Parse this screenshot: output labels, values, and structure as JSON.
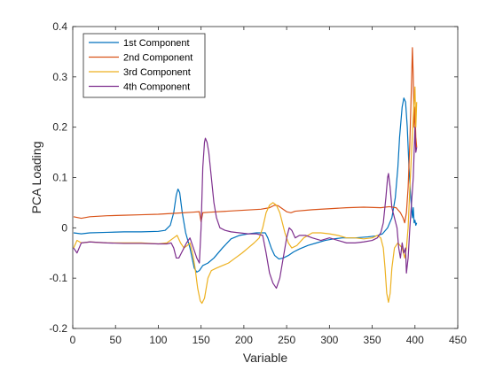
{
  "chart_data": {
    "type": "line",
    "title": "",
    "xlabel": "Variable",
    "ylabel": "PCA Loading",
    "xlim": [
      0,
      450
    ],
    "ylim": [
      -0.2,
      0.4
    ],
    "xticks": [
      0,
      50,
      100,
      150,
      200,
      250,
      300,
      350,
      400,
      450
    ],
    "yticks": [
      -0.2,
      -0.1,
      0,
      0.1,
      0.2,
      0.3,
      0.4
    ],
    "xtick_labels": [
      "0",
      "50",
      "100",
      "150",
      "200",
      "250",
      "300",
      "350",
      "400",
      "450"
    ],
    "ytick_labels": [
      "-0.2",
      "-0.1",
      "0",
      "0.1",
      "0.2",
      "0.3",
      "0.4"
    ],
    "grid": false,
    "legend_position": "top-left",
    "series": [
      {
        "name": "1st Component",
        "color": "#0072BD",
        "points": [
          [
            1,
            -0.01
          ],
          [
            10,
            -0.012
          ],
          [
            20,
            -0.01
          ],
          [
            40,
            -0.009
          ],
          [
            60,
            -0.008
          ],
          [
            80,
            -0.008
          ],
          [
            100,
            -0.007
          ],
          [
            108,
            -0.005
          ],
          [
            114,
            0.005
          ],
          [
            118,
            0.03
          ],
          [
            121,
            0.065
          ],
          [
            123,
            0.077
          ],
          [
            125,
            0.07
          ],
          [
            128,
            0.03
          ],
          [
            132,
            -0.01
          ],
          [
            137,
            -0.04
          ],
          [
            142,
            -0.08
          ],
          [
            145,
            -0.088
          ],
          [
            148,
            -0.085
          ],
          [
            152,
            -0.075
          ],
          [
            158,
            -0.07
          ],
          [
            165,
            -0.06
          ],
          [
            175,
            -0.04
          ],
          [
            185,
            -0.022
          ],
          [
            195,
            -0.015
          ],
          [
            205,
            -0.012
          ],
          [
            215,
            -0.01
          ],
          [
            225,
            -0.01
          ],
          [
            228,
            -0.02
          ],
          [
            232,
            -0.04
          ],
          [
            236,
            -0.055
          ],
          [
            241,
            -0.062
          ],
          [
            246,
            -0.06
          ],
          [
            252,
            -0.055
          ],
          [
            258,
            -0.048
          ],
          [
            265,
            -0.042
          ],
          [
            275,
            -0.035
          ],
          [
            285,
            -0.03
          ],
          [
            295,
            -0.025
          ],
          [
            305,
            -0.022
          ],
          [
            315,
            -0.02
          ],
          [
            330,
            -0.02
          ],
          [
            345,
            -0.018
          ],
          [
            355,
            -0.016
          ],
          [
            362,
            -0.012
          ],
          [
            368,
            0.0
          ],
          [
            373,
            0.02
          ],
          [
            377,
            0.06
          ],
          [
            380,
            0.12
          ],
          [
            382,
            0.18
          ],
          [
            385,
            0.24
          ],
          [
            387,
            0.258
          ],
          [
            389,
            0.25
          ],
          [
            391,
            0.2
          ],
          [
            393,
            0.12
          ],
          [
            395,
            0.06
          ],
          [
            397,
            0.02
          ],
          [
            398,
            0.04
          ],
          [
            399,
            0.01
          ],
          [
            400,
            0.015
          ],
          [
            401,
            0.005
          ],
          [
            402,
            0.01
          ]
        ]
      },
      {
        "name": "2nd Component",
        "color": "#D95319",
        "points": [
          [
            1,
            0.022
          ],
          [
            10,
            0.019
          ],
          [
            20,
            0.022
          ],
          [
            40,
            0.024
          ],
          [
            60,
            0.025
          ],
          [
            80,
            0.026
          ],
          [
            100,
            0.027
          ],
          [
            120,
            0.029
          ],
          [
            140,
            0.031
          ],
          [
            148,
            0.032
          ],
          [
            150,
            0.012
          ],
          [
            152,
            0.03
          ],
          [
            160,
            0.031
          ],
          [
            180,
            0.033
          ],
          [
            200,
            0.035
          ],
          [
            220,
            0.037
          ],
          [
            230,
            0.04
          ],
          [
            236,
            0.045
          ],
          [
            240,
            0.044
          ],
          [
            245,
            0.038
          ],
          [
            250,
            0.032
          ],
          [
            255,
            0.03
          ],
          [
            260,
            0.033
          ],
          [
            280,
            0.036
          ],
          [
            300,
            0.038
          ],
          [
            320,
            0.04
          ],
          [
            340,
            0.041
          ],
          [
            360,
            0.04
          ],
          [
            370,
            0.042
          ],
          [
            378,
            0.04
          ],
          [
            383,
            0.03
          ],
          [
            386,
            0.02
          ],
          [
            388,
            0.01
          ],
          [
            390,
            0.03
          ],
          [
            392,
            0.08
          ],
          [
            394,
            0.17
          ],
          [
            396,
            0.29
          ],
          [
            397,
            0.358
          ],
          [
            398,
            0.3
          ],
          [
            399,
            0.2
          ],
          [
            400,
            0.24
          ],
          [
            401,
            0.18
          ],
          [
            402,
            0.16
          ]
        ]
      },
      {
        "name": "3rd Component",
        "color": "#EDB120",
        "points": [
          [
            1,
            -0.04
          ],
          [
            5,
            -0.025
          ],
          [
            10,
            -0.03
          ],
          [
            20,
            -0.028
          ],
          [
            40,
            -0.03
          ],
          [
            60,
            -0.03
          ],
          [
            80,
            -0.03
          ],
          [
            100,
            -0.032
          ],
          [
            110,
            -0.03
          ],
          [
            118,
            -0.02
          ],
          [
            122,
            -0.015
          ],
          [
            126,
            -0.03
          ],
          [
            130,
            -0.04
          ],
          [
            134,
            -0.035
          ],
          [
            137,
            -0.03
          ],
          [
            140,
            -0.05
          ],
          [
            143,
            -0.08
          ],
          [
            146,
            -0.12
          ],
          [
            149,
            -0.145
          ],
          [
            151,
            -0.15
          ],
          [
            154,
            -0.14
          ],
          [
            158,
            -0.1
          ],
          [
            162,
            -0.085
          ],
          [
            168,
            -0.08
          ],
          [
            175,
            -0.075
          ],
          [
            182,
            -0.07
          ],
          [
            190,
            -0.06
          ],
          [
            198,
            -0.05
          ],
          [
            205,
            -0.04
          ],
          [
            212,
            -0.03
          ],
          [
            218,
            -0.02
          ],
          [
            222,
            0.0
          ],
          [
            226,
            0.03
          ],
          [
            230,
            0.045
          ],
          [
            234,
            0.05
          ],
          [
            238,
            0.045
          ],
          [
            242,
            0.03
          ],
          [
            245,
            0.01
          ],
          [
            248,
            -0.01
          ],
          [
            252,
            -0.03
          ],
          [
            256,
            -0.04
          ],
          [
            262,
            -0.035
          ],
          [
            270,
            -0.02
          ],
          [
            280,
            -0.01
          ],
          [
            290,
            -0.01
          ],
          [
            300,
            -0.012
          ],
          [
            310,
            -0.015
          ],
          [
            320,
            -0.02
          ],
          [
            330,
            -0.02
          ],
          [
            340,
            -0.022
          ],
          [
            350,
            -0.02
          ],
          [
            356,
            -0.015
          ],
          [
            360,
            -0.02
          ],
          [
            363,
            -0.04
          ],
          [
            365,
            -0.08
          ],
          [
            367,
            -0.13
          ],
          [
            369,
            -0.148
          ],
          [
            371,
            -0.13
          ],
          [
            373,
            -0.08
          ],
          [
            376,
            -0.04
          ],
          [
            380,
            -0.03
          ],
          [
            385,
            -0.04
          ],
          [
            388,
            -0.06
          ],
          [
            390,
            -0.04
          ],
          [
            392,
            0.0
          ],
          [
            394,
            0.08
          ],
          [
            396,
            0.15
          ],
          [
            398,
            0.22
          ],
          [
            400,
            0.28
          ],
          [
            401,
            0.2
          ],
          [
            402,
            0.25
          ]
        ]
      },
      {
        "name": "4th Component",
        "color": "#7E2F8E",
        "points": [
          [
            1,
            -0.04
          ],
          [
            5,
            -0.05
          ],
          [
            10,
            -0.03
          ],
          [
            20,
            -0.028
          ],
          [
            40,
            -0.03
          ],
          [
            60,
            -0.031
          ],
          [
            80,
            -0.031
          ],
          [
            100,
            -0.032
          ],
          [
            110,
            -0.032
          ],
          [
            115,
            -0.03
          ],
          [
            118,
            -0.04
          ],
          [
            121,
            -0.06
          ],
          [
            124,
            -0.06
          ],
          [
            127,
            -0.05
          ],
          [
            130,
            -0.04
          ],
          [
            133,
            -0.03
          ],
          [
            137,
            -0.02
          ],
          [
            141,
            -0.04
          ],
          [
            145,
            -0.06
          ],
          [
            148,
            -0.07
          ],
          [
            150,
            0.0
          ],
          [
            152,
            0.12
          ],
          [
            154,
            0.17
          ],
          [
            155,
            0.178
          ],
          [
            157,
            0.17
          ],
          [
            159,
            0.15
          ],
          [
            162,
            0.1
          ],
          [
            165,
            0.05
          ],
          [
            168,
            0.02
          ],
          [
            172,
            0.0
          ],
          [
            178,
            -0.005
          ],
          [
            185,
            -0.008
          ],
          [
            195,
            -0.01
          ],
          [
            205,
            -0.012
          ],
          [
            215,
            -0.012
          ],
          [
            222,
            -0.015
          ],
          [
            226,
            -0.05
          ],
          [
            230,
            -0.09
          ],
          [
            234,
            -0.11
          ],
          [
            238,
            -0.12
          ],
          [
            242,
            -0.1
          ],
          [
            246,
            -0.06
          ],
          [
            250,
            -0.02
          ],
          [
            253,
            0.0
          ],
          [
            256,
            -0.005
          ],
          [
            260,
            -0.02
          ],
          [
            265,
            -0.015
          ],
          [
            272,
            -0.015
          ],
          [
            280,
            -0.02
          ],
          [
            290,
            -0.025
          ],
          [
            300,
            -0.02
          ],
          [
            310,
            -0.025
          ],
          [
            320,
            -0.03
          ],
          [
            330,
            -0.03
          ],
          [
            340,
            -0.028
          ],
          [
            350,
            -0.025
          ],
          [
            356,
            -0.02
          ],
          [
            360,
            -0.01
          ],
          [
            363,
            0.01
          ],
          [
            366,
            0.06
          ],
          [
            368,
            0.1
          ],
          [
            369,
            0.108
          ],
          [
            371,
            0.08
          ],
          [
            373,
            0.04
          ],
          [
            376,
            0.02
          ],
          [
            379,
            0.0
          ],
          [
            381,
            -0.04
          ],
          [
            383,
            -0.06
          ],
          [
            385,
            -0.03
          ],
          [
            387,
            -0.05
          ],
          [
            389,
            -0.04
          ],
          [
            390,
            -0.09
          ],
          [
            392,
            -0.06
          ],
          [
            394,
            0.0
          ],
          [
            396,
            0.05
          ],
          [
            398,
            0.1
          ],
          [
            400,
            0.2
          ],
          [
            401,
            0.15
          ],
          [
            402,
            0.16
          ]
        ]
      }
    ]
  }
}
